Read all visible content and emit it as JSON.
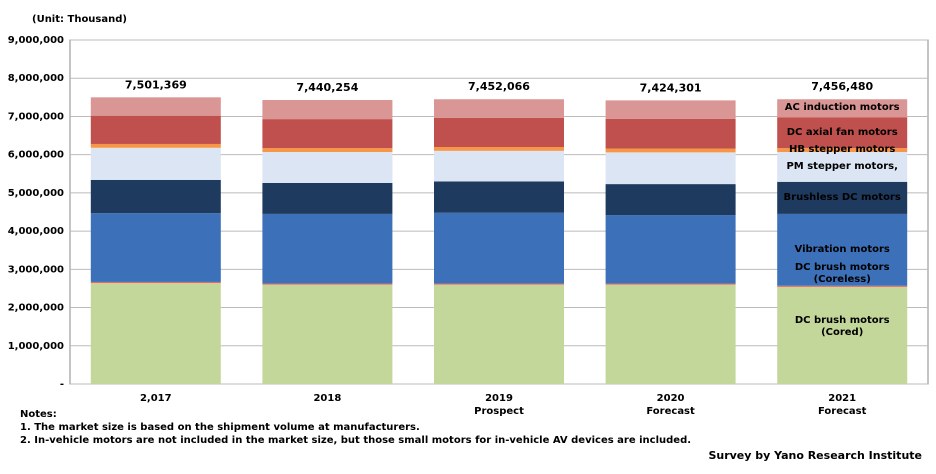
{
  "chart_data": {
    "type": "stacked-bar",
    "unit_label": "(Unit: Thousand)",
    "categories": [
      "2,017",
      "2018",
      "2019",
      "2020",
      "2021"
    ],
    "category_notes": [
      null,
      null,
      "Prospect",
      "Forecast",
      "Forecast"
    ],
    "total_labels": [
      "7,501,369",
      "7,440,254",
      "7,452,066",
      "7,424,301",
      "7,456,480"
    ],
    "series": [
      {
        "name": "DC brush motors (Cored)",
        "color": "#c4d79b",
        "values": [
          2640000,
          2600000,
          2600000,
          2600000,
          2540000
        ]
      },
      {
        "name": "DC brush motors (Coreless)",
        "color": "#e06a6a",
        "values": [
          30000,
          30000,
          30000,
          30000,
          30000
        ]
      },
      {
        "name": "Vibration motors",
        "color": "#3c70b8",
        "values": [
          1800000,
          1820000,
          1850000,
          1790000,
          1880000
        ]
      },
      {
        "name": "Brushless DC motors",
        "color": "#1f3a5f",
        "values": [
          870000,
          810000,
          820000,
          810000,
          840000
        ]
      },
      {
        "name": "PM stepper motors,",
        "color": "#dbe5f3",
        "values": [
          840000,
          810000,
          800000,
          830000,
          780000
        ]
      },
      {
        "name": "HB stepper motors",
        "color": "#f79646",
        "values": [
          100000,
          100000,
          100000,
          100000,
          100000
        ]
      },
      {
        "name": "DC axial fan motors",
        "color": "#c0504d",
        "values": [
          740000,
          760000,
          760000,
          780000,
          810000
        ]
      },
      {
        "name": "AC induction motors",
        "color": "#d99694",
        "values": [
          480000,
          500000,
          490000,
          480000,
          470000
        ]
      }
    ],
    "ylim": [
      0,
      9000000
    ],
    "yticks": [
      {
        "value": 0,
        "label": "-"
      },
      {
        "value": 1000000,
        "label": "1,000,000"
      },
      {
        "value": 2000000,
        "label": "2,000,000"
      },
      {
        "value": 3000000,
        "label": "3,000,000"
      },
      {
        "value": 4000000,
        "label": "4,000,000"
      },
      {
        "value": 5000000,
        "label": "5,000,000"
      },
      {
        "value": 6000000,
        "label": "6,000,000"
      },
      {
        "value": 7000000,
        "label": "7,000,000"
      },
      {
        "value": 8000000,
        "label": "8,000,000"
      },
      {
        "value": 9000000,
        "label": "9,000,000"
      }
    ],
    "grid": true,
    "notes": [
      "Notes:",
      "1. The market size is based on the shipment  volume at manufacturers.",
      "2. In-vehicle motors are not included in the market size, but those small motors for in-vehicle AV devices are included."
    ],
    "source": "Survey by Yano Research Institute"
  }
}
